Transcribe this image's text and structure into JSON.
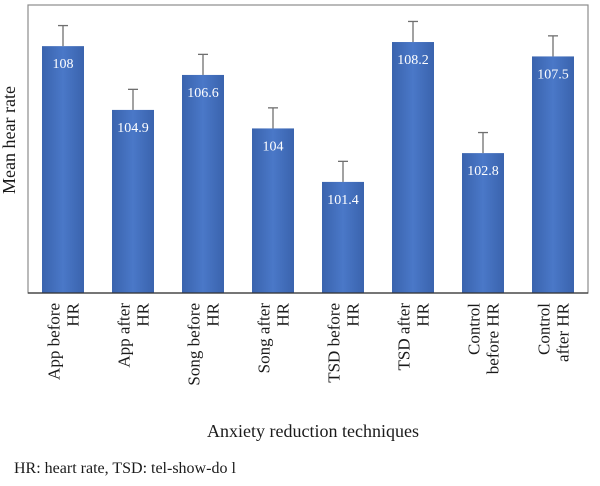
{
  "chart_data": {
    "type": "bar",
    "categories": [
      [
        "App before",
        "HR"
      ],
      [
        "App after",
        "HR"
      ],
      [
        "Song before",
        "HR"
      ],
      [
        "Song after",
        "HR"
      ],
      [
        "TSD before",
        "HR"
      ],
      [
        "TSD after",
        "HR"
      ],
      [
        "Control",
        "before HR"
      ],
      [
        "Control",
        "after HR"
      ]
    ],
    "values": [
      108,
      104.9,
      106.6,
      104,
      101.4,
      108.2,
      102.8,
      107.5
    ],
    "value_labels": [
      "108",
      "104.9",
      "106.6",
      "104",
      "101.4",
      "108.2",
      "102.8",
      "107.5"
    ],
    "error": [
      1,
      1,
      1,
      1,
      1,
      1,
      1,
      1
    ],
    "title": "",
    "xlabel": "Anxiety reduction techniques",
    "ylabel": "Mean hear rate",
    "ylim": [
      96,
      110
    ],
    "grid": false,
    "bar_color": "#4472c4"
  },
  "footnote": "HR: heart rate, TSD: tel-show-do l"
}
